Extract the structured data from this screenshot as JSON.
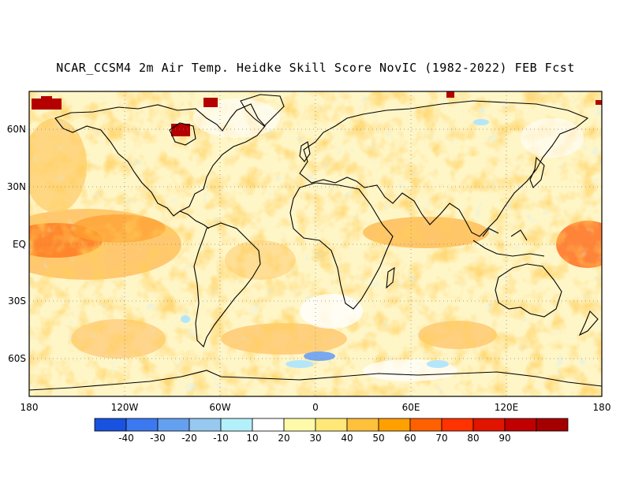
{
  "title": "NCAR_CCSM4 2m Air Temp. Heidke Skill Score NovIC (1982-2022) FEB Fcst",
  "map": {
    "lat_labels": [
      "60N",
      "30N",
      "EQ",
      "30S",
      "60S"
    ],
    "lon_labels": [
      "180",
      "120W",
      "60W",
      "0",
      "60E",
      "120E",
      "180"
    ]
  },
  "colorbar": {
    "labels": [
      "-40",
      "-30",
      "-20",
      "-10",
      "10",
      "20",
      "30",
      "40",
      "50",
      "60",
      "70",
      "80",
      "90"
    ],
    "colors": [
      "#1a52e0",
      "#3c78f0",
      "#64a0f0",
      "#96c8f0",
      "#b4f0fa",
      "#ffffff",
      "#fffaaa",
      "#ffe878",
      "#ffc03c",
      "#ffa000",
      "#ff6000",
      "#ff3200",
      "#e11400",
      "#c00000",
      "#a50000"
    ]
  }
}
